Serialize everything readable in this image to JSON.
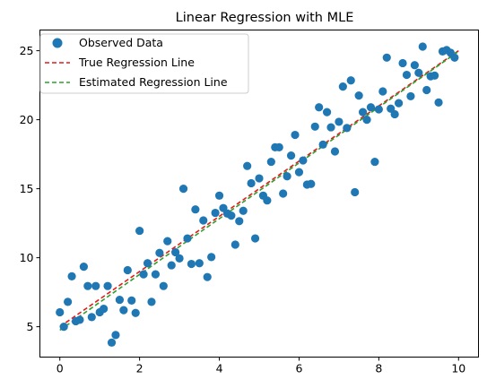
{
  "chart_data": {
    "type": "scatter",
    "title": "Linear Regression with MLE",
    "xlabel": "",
    "ylabel": "",
    "xlim": [
      -0.5,
      10.5
    ],
    "ylim": [
      2.8,
      26.5
    ],
    "xticks": [
      0,
      2,
      4,
      6,
      8,
      10
    ],
    "yticks": [
      5,
      10,
      15,
      20,
      25
    ],
    "grid": false,
    "legend_position": "top-left",
    "series": [
      {
        "name": "Observed Data",
        "kind": "scatter",
        "color": "#1f77b4",
        "points": [
          [
            0.0,
            6.05
          ],
          [
            0.1,
            5.0
          ],
          [
            0.2,
            6.8
          ],
          [
            0.3,
            8.65
          ],
          [
            0.4,
            5.4
          ],
          [
            0.5,
            5.5
          ],
          [
            0.6,
            9.35
          ],
          [
            0.7,
            7.95
          ],
          [
            0.8,
            5.7
          ],
          [
            0.9,
            7.95
          ],
          [
            1.0,
            6.05
          ],
          [
            1.1,
            6.3
          ],
          [
            1.2,
            7.95
          ],
          [
            1.3,
            3.85
          ],
          [
            1.4,
            4.4
          ],
          [
            1.5,
            6.95
          ],
          [
            1.6,
            6.2
          ],
          [
            1.7,
            9.1
          ],
          [
            1.8,
            6.9
          ],
          [
            1.9,
            6.0
          ],
          [
            2.0,
            11.95
          ],
          [
            2.1,
            8.8
          ],
          [
            2.2,
            9.6
          ],
          [
            2.3,
            6.8
          ],
          [
            2.4,
            8.8
          ],
          [
            2.5,
            10.35
          ],
          [
            2.6,
            7.95
          ],
          [
            2.7,
            11.2
          ],
          [
            2.8,
            9.45
          ],
          [
            2.9,
            10.4
          ],
          [
            3.0,
            9.95
          ],
          [
            3.1,
            15.0
          ],
          [
            3.2,
            11.4
          ],
          [
            3.3,
            9.55
          ],
          [
            3.4,
            13.5
          ],
          [
            3.5,
            9.6
          ],
          [
            3.6,
            12.7
          ],
          [
            3.7,
            8.6
          ],
          [
            3.8,
            10.05
          ],
          [
            3.9,
            13.25
          ],
          [
            4.0,
            14.5
          ],
          [
            4.1,
            13.6
          ],
          [
            4.2,
            13.2
          ],
          [
            4.3,
            13.05
          ],
          [
            4.4,
            10.95
          ],
          [
            4.5,
            12.65
          ],
          [
            4.6,
            13.4
          ],
          [
            4.7,
            16.65
          ],
          [
            4.8,
            15.4
          ],
          [
            4.9,
            11.4
          ],
          [
            5.0,
            15.75
          ],
          [
            5.1,
            14.5
          ],
          [
            5.2,
            14.15
          ],
          [
            5.3,
            16.95
          ],
          [
            5.4,
            18.0
          ],
          [
            5.5,
            18.0
          ],
          [
            5.6,
            14.65
          ],
          [
            5.7,
            15.9
          ],
          [
            5.8,
            17.4
          ],
          [
            5.9,
            18.9
          ],
          [
            6.0,
            16.2
          ],
          [
            6.1,
            17.05
          ],
          [
            6.2,
            15.3
          ],
          [
            6.3,
            15.35
          ],
          [
            6.4,
            19.5
          ],
          [
            6.5,
            20.9
          ],
          [
            6.6,
            18.2
          ],
          [
            6.7,
            20.55
          ],
          [
            6.8,
            19.45
          ],
          [
            6.9,
            17.7
          ],
          [
            7.0,
            19.85
          ],
          [
            7.1,
            22.4
          ],
          [
            7.2,
            19.4
          ],
          [
            7.3,
            22.85
          ],
          [
            7.4,
            14.75
          ],
          [
            7.5,
            21.75
          ],
          [
            7.6,
            20.55
          ],
          [
            7.7,
            20.0
          ],
          [
            7.8,
            20.9
          ],
          [
            7.9,
            16.95
          ],
          [
            8.0,
            20.75
          ],
          [
            8.1,
            22.05
          ],
          [
            8.2,
            24.5
          ],
          [
            8.3,
            20.8
          ],
          [
            8.4,
            20.4
          ],
          [
            8.5,
            21.2
          ],
          [
            8.6,
            24.1
          ],
          [
            8.7,
            23.25
          ],
          [
            8.8,
            21.7
          ],
          [
            8.9,
            23.95
          ],
          [
            9.0,
            23.4
          ],
          [
            9.1,
            25.3
          ],
          [
            9.2,
            22.15
          ],
          [
            9.3,
            23.15
          ],
          [
            9.4,
            23.2
          ],
          [
            9.5,
            21.25
          ],
          [
            9.6,
            24.95
          ],
          [
            9.7,
            25.05
          ],
          [
            9.8,
            24.85
          ],
          [
            9.9,
            24.5
          ]
        ]
      },
      {
        "name": "True Regression Line",
        "kind": "line",
        "style": "dashed",
        "color": "#e31a1c",
        "points": [
          [
            0,
            5.0
          ],
          [
            10,
            25.0
          ]
        ]
      },
      {
        "name": "Estimated Regression Line",
        "kind": "line",
        "style": "dashed",
        "color": "#2ca02c",
        "points": [
          [
            0,
            4.75
          ],
          [
            10,
            24.95
          ]
        ]
      }
    ]
  }
}
